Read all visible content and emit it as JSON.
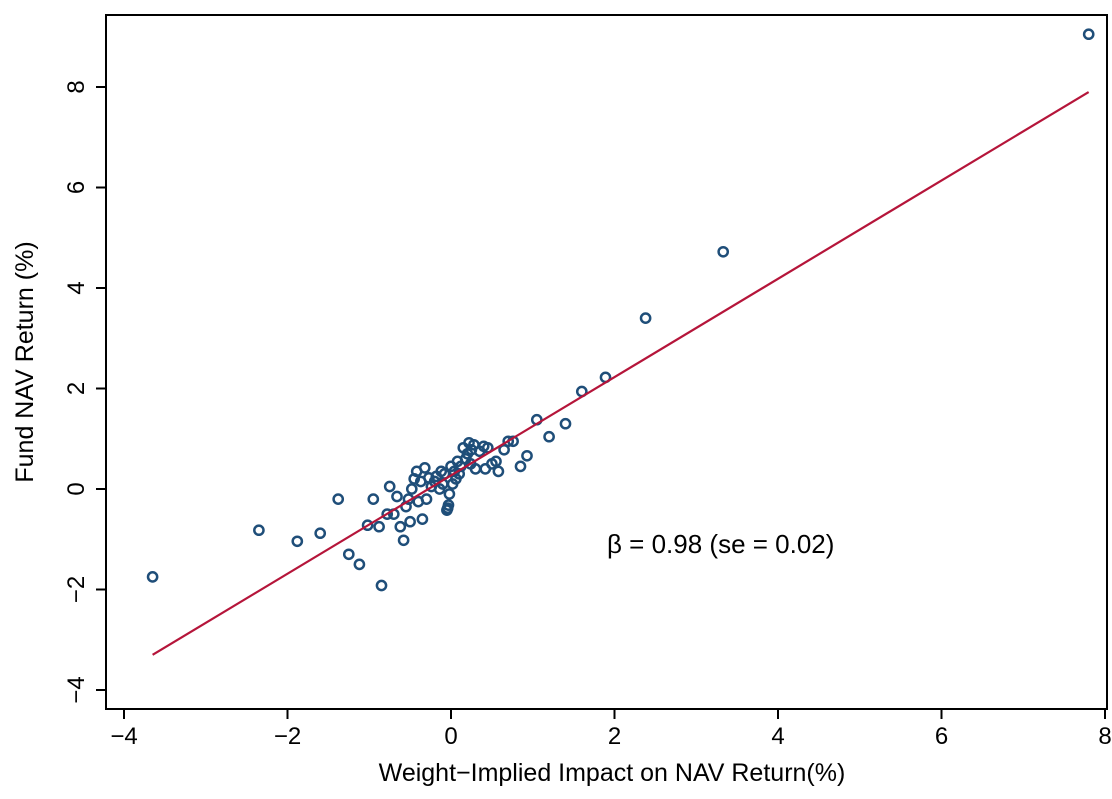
{
  "chart_data": {
    "type": "scatter",
    "title": "",
    "xlabel": "Weight−Implied Impact on NAV Return(%)",
    "ylabel": "Fund NAV Return (%)",
    "xlim": [
      -4.2,
      8.2
    ],
    "ylim": [
      -4.4,
      9.3
    ],
    "x_ticks": [
      -4,
      -2,
      0,
      2,
      4,
      6,
      8
    ],
    "x_tick_labels": [
      "−4",
      "−2",
      "0",
      "2",
      "4",
      "6",
      "8"
    ],
    "y_ticks": [
      -4,
      -2,
      0,
      2,
      4,
      6,
      8
    ],
    "y_tick_labels": [
      "−4",
      "−2",
      "0",
      "2",
      "4",
      "6",
      "8"
    ],
    "grid": false,
    "legend": "none",
    "annotation": "β = 0.98 (se = 0.02)",
    "colors": {
      "points": "#1f4e79",
      "fit_line": "#b5153a",
      "axes": "#000000"
    },
    "fit_line": {
      "slope": 0.98,
      "x_start": -3.65,
      "x_end": 7.8,
      "y_start": -3.3,
      "y_end": 7.9
    },
    "points": [
      [
        7.8,
        9.05
      ],
      [
        3.33,
        4.72
      ],
      [
        2.38,
        3.4
      ],
      [
        1.89,
        2.22
      ],
      [
        1.6,
        1.94
      ],
      [
        1.4,
        1.3
      ],
      [
        1.2,
        1.04
      ],
      [
        1.05,
        1.38
      ],
      [
        0.93,
        0.66
      ],
      [
        0.85,
        0.45
      ],
      [
        0.76,
        0.95
      ],
      [
        0.7,
        0.95
      ],
      [
        0.65,
        0.78
      ],
      [
        0.58,
        0.35
      ],
      [
        0.55,
        0.55
      ],
      [
        0.5,
        0.5
      ],
      [
        0.45,
        0.82
      ],
      [
        0.42,
        0.4
      ],
      [
        0.4,
        0.85
      ],
      [
        0.35,
        0.75
      ],
      [
        0.3,
        0.4
      ],
      [
        0.28,
        0.88
      ],
      [
        0.25,
        0.78
      ],
      [
        0.24,
        0.5
      ],
      [
        0.22,
        0.92
      ],
      [
        0.2,
        0.7
      ],
      [
        0.18,
        0.6
      ],
      [
        0.15,
        0.82
      ],
      [
        0.12,
        0.45
      ],
      [
        0.1,
        0.3
      ],
      [
        0.08,
        0.55
      ],
      [
        0.06,
        0.2
      ],
      [
        0.04,
        0.35
      ],
      [
        0.02,
        0.1
      ],
      [
        0.0,
        0.45
      ],
      [
        -0.02,
        -0.1
      ],
      [
        -0.03,
        -0.32
      ],
      [
        -0.04,
        -0.38
      ],
      [
        -0.05,
        -0.42
      ],
      [
        -0.08,
        0.3
      ],
      [
        -0.1,
        0.1
      ],
      [
        -0.12,
        0.35
      ],
      [
        -0.14,
        0.0
      ],
      [
        -0.18,
        0.25
      ],
      [
        -0.2,
        0.15
      ],
      [
        -0.24,
        0.05
      ],
      [
        -0.27,
        0.22
      ],
      [
        -0.3,
        -0.2
      ],
      [
        -0.32,
        0.42
      ],
      [
        -0.35,
        -0.6
      ],
      [
        -0.37,
        0.15
      ],
      [
        -0.4,
        -0.25
      ],
      [
        -0.42,
        0.35
      ],
      [
        -0.45,
        0.2
      ],
      [
        -0.48,
        0.0
      ],
      [
        -0.5,
        -0.65
      ],
      [
        -0.52,
        -0.2
      ],
      [
        -0.55,
        -0.35
      ],
      [
        -0.58,
        -1.02
      ],
      [
        -0.62,
        -0.75
      ],
      [
        -0.66,
        -0.15
      ],
      [
        -0.7,
        -0.5
      ],
      [
        -0.75,
        0.05
      ],
      [
        -0.78,
        -0.5
      ],
      [
        -0.85,
        -1.92
      ],
      [
        -0.88,
        -0.75
      ],
      [
        -0.95,
        -0.2
      ],
      [
        -1.02,
        -0.72
      ],
      [
        -1.12,
        -1.5
      ],
      [
        -1.25,
        -1.3
      ],
      [
        -1.38,
        -0.2
      ],
      [
        -1.6,
        -0.88
      ],
      [
        -1.88,
        -1.04
      ],
      [
        -2.35,
        -0.82
      ],
      [
        -3.65,
        -1.75
      ]
    ]
  }
}
